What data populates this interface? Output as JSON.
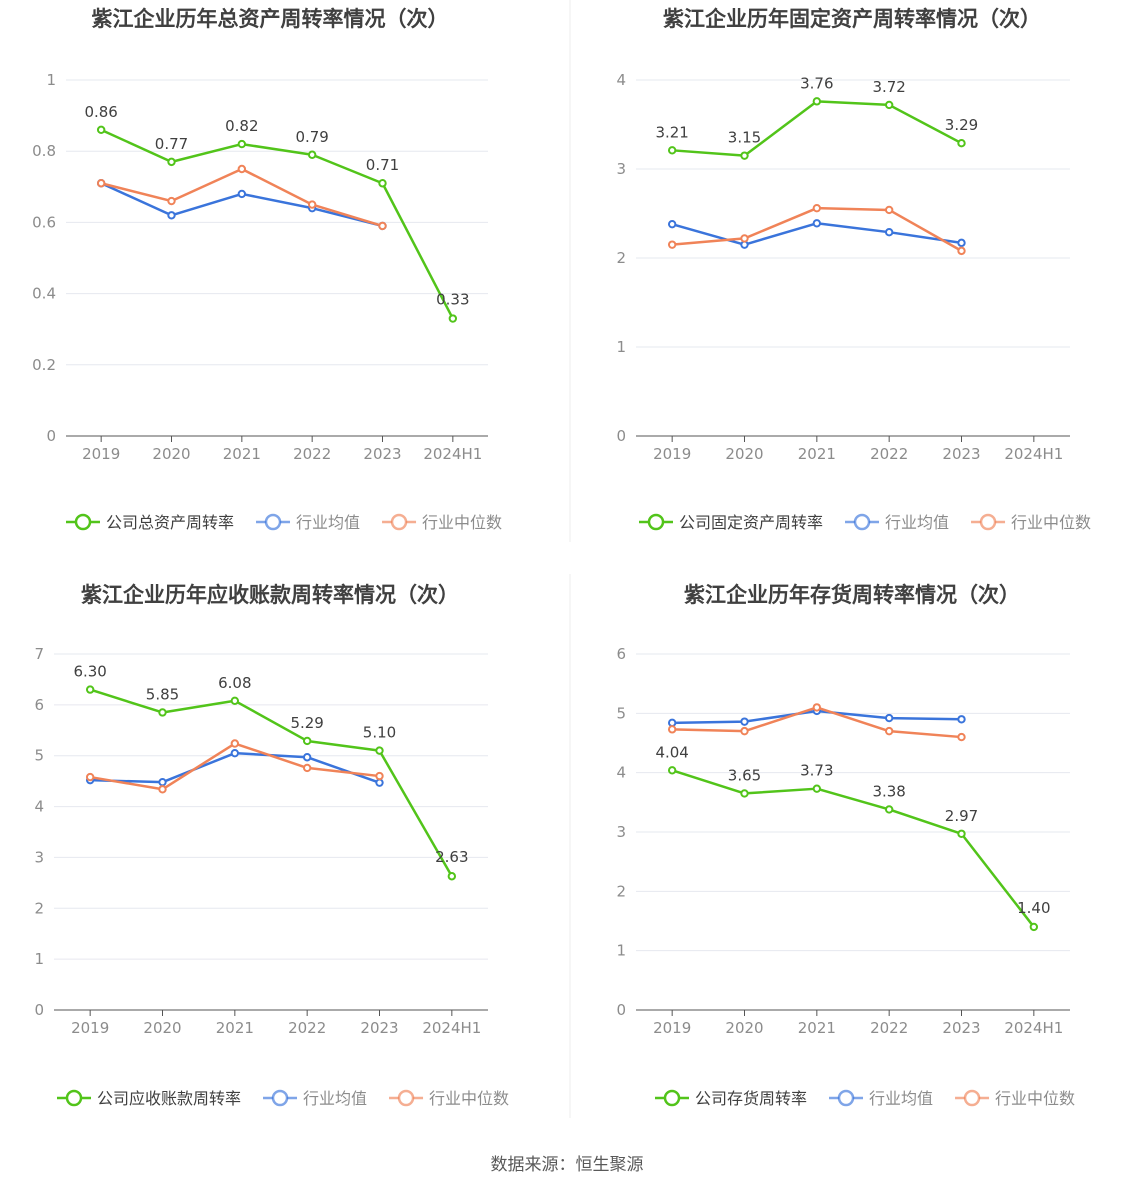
{
  "footer": {
    "source": "数据来源：恒生聚源"
  },
  "colors": {
    "company": "#52c41a",
    "average": "#3a74db",
    "median": "#f08358",
    "grid": "#e6e8ef",
    "axis": "#555555",
    "tick": "#8c8c8c",
    "title": "#404040"
  },
  "chart_data": [
    {
      "type": "line",
      "title": "紫江企业历年总资产周转率情况（次）",
      "categories": [
        "2019",
        "2020",
        "2021",
        "2022",
        "2023",
        "2024H1"
      ],
      "ylim": [
        0,
        1
      ],
      "yticks": [
        "0",
        "0.2",
        "0.4",
        "0.6",
        "0.8",
        "1"
      ],
      "grid": true,
      "legend_position": "bottom",
      "series": [
        {
          "name": "公司总资产周转率",
          "key": "company",
          "values": [
            0.86,
            0.77,
            0.82,
            0.79,
            0.71,
            0.33
          ],
          "labels": [
            "0.86",
            "0.77",
            "0.82",
            "0.79",
            "0.71",
            "0.33"
          ]
        },
        {
          "name": "行业均值",
          "key": "average",
          "values": [
            0.71,
            0.62,
            0.68,
            0.64,
            0.59,
            null
          ]
        },
        {
          "name": "行业中位数",
          "key": "median",
          "values": [
            0.71,
            0.66,
            0.75,
            0.65,
            0.59,
            null
          ]
        }
      ]
    },
    {
      "type": "line",
      "title": "紫江企业历年固定资产周转率情况（次）",
      "categories": [
        "2019",
        "2020",
        "2021",
        "2022",
        "2023",
        "2024H1"
      ],
      "ylim": [
        0,
        4
      ],
      "yticks": [
        "0",
        "1",
        "2",
        "3",
        "4"
      ],
      "grid": true,
      "legend_position": "bottom",
      "series": [
        {
          "name": "公司固定资产周转率",
          "key": "company",
          "values": [
            3.21,
            3.15,
            3.76,
            3.72,
            3.29,
            null
          ],
          "labels": [
            "3.21",
            "3.15",
            "3.76",
            "3.72",
            "3.29",
            null
          ]
        },
        {
          "name": "行业均值",
          "key": "average",
          "values": [
            2.38,
            2.15,
            2.39,
            2.29,
            2.17,
            null
          ]
        },
        {
          "name": "行业中位数",
          "key": "median",
          "values": [
            2.15,
            2.22,
            2.56,
            2.54,
            2.08,
            null
          ]
        }
      ]
    },
    {
      "type": "line",
      "title": "紫江企业历年应收账款周转率情况（次）",
      "categories": [
        "2019",
        "2020",
        "2021",
        "2022",
        "2023",
        "2024H1"
      ],
      "ylim": [
        0,
        7
      ],
      "yticks": [
        "0",
        "1",
        "2",
        "3",
        "4",
        "5",
        "6",
        "7"
      ],
      "grid": true,
      "legend_position": "bottom",
      "series": [
        {
          "name": "公司应收账款周转率",
          "key": "company",
          "values": [
            6.3,
            5.85,
            6.08,
            5.29,
            5.1,
            2.63
          ],
          "labels": [
            "6.30",
            "5.85",
            "6.08",
            "5.29",
            "5.10",
            "2.63"
          ]
        },
        {
          "name": "行业均值",
          "key": "average",
          "values": [
            4.52,
            4.48,
            5.05,
            4.97,
            4.47,
            null
          ]
        },
        {
          "name": "行业中位数",
          "key": "median",
          "values": [
            4.58,
            4.34,
            5.24,
            4.76,
            4.6,
            null
          ]
        }
      ]
    },
    {
      "type": "line",
      "title": "紫江企业历年存货周转率情况（次）",
      "categories": [
        "2019",
        "2020",
        "2021",
        "2022",
        "2023",
        "2024H1"
      ],
      "ylim": [
        0,
        6
      ],
      "yticks": [
        "0",
        "1",
        "2",
        "3",
        "4",
        "5",
        "6"
      ],
      "grid": true,
      "legend_position": "bottom",
      "series": [
        {
          "name": "公司存货周转率",
          "key": "company",
          "values": [
            4.04,
            3.65,
            3.73,
            3.38,
            2.97,
            1.4
          ],
          "labels": [
            "4.04",
            "3.65",
            "3.73",
            "3.38",
            "2.97",
            "1.40"
          ]
        },
        {
          "name": "行业均值",
          "key": "average",
          "values": [
            4.84,
            4.86,
            5.04,
            4.92,
            4.9,
            null
          ]
        },
        {
          "name": "行业中位数",
          "key": "median",
          "values": [
            4.73,
            4.7,
            5.1,
            4.7,
            4.6,
            null
          ]
        }
      ]
    }
  ]
}
